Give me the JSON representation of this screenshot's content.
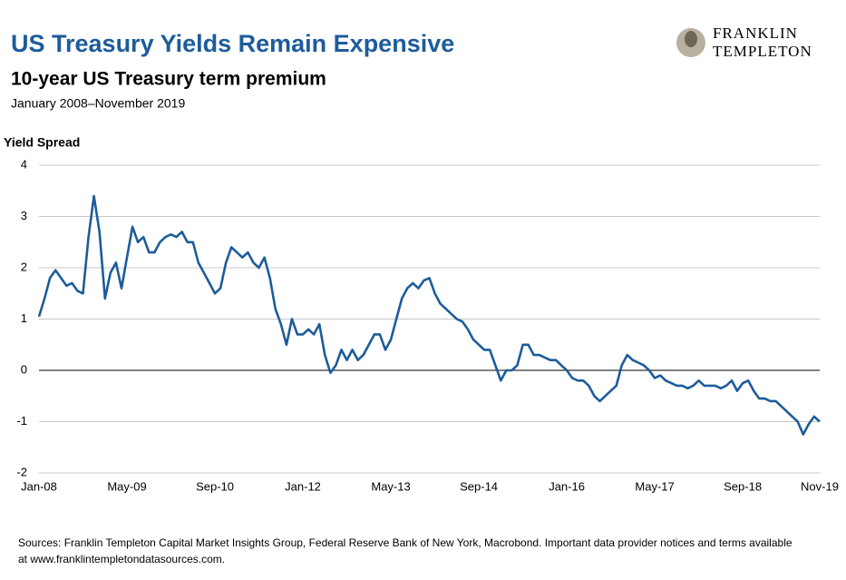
{
  "header": {
    "title": "US Treasury Yields Remain Expensive",
    "brand": [
      "FRANKLIN",
      "TEMPLETON"
    ]
  },
  "chart_data": {
    "type": "line",
    "title": "10-year US Treasury term premium",
    "subtitle": "January 2008–November 2019",
    "y_label": "Yield Spread",
    "categories": [
      "Jan-08",
      null,
      null,
      null,
      null,
      null,
      null,
      null,
      null,
      null,
      null,
      null,
      null,
      null,
      null,
      null,
      "May-09",
      null,
      null,
      null,
      null,
      null,
      null,
      null,
      null,
      null,
      null,
      null,
      null,
      null,
      null,
      null,
      "Sep-10",
      null,
      null,
      null,
      null,
      null,
      null,
      null,
      null,
      null,
      null,
      null,
      null,
      null,
      null,
      null,
      "Jan-12",
      null,
      null,
      null,
      null,
      null,
      null,
      null,
      null,
      null,
      null,
      null,
      null,
      null,
      null,
      null,
      "May-13",
      null,
      null,
      null,
      null,
      null,
      null,
      null,
      null,
      null,
      null,
      null,
      null,
      null,
      null,
      null,
      "Sep-14",
      null,
      null,
      null,
      null,
      null,
      null,
      null,
      null,
      null,
      null,
      null,
      null,
      null,
      null,
      null,
      "Jan-16",
      null,
      null,
      null,
      null,
      null,
      null,
      null,
      null,
      null,
      null,
      null,
      null,
      null,
      null,
      null,
      "May-17",
      null,
      null,
      null,
      null,
      null,
      null,
      null,
      null,
      null,
      null,
      null,
      null,
      null,
      null,
      null,
      "Sep-18",
      null,
      null,
      null,
      null,
      null,
      null,
      null,
      null,
      null,
      null,
      null,
      null,
      null,
      "Nov-19"
    ],
    "series": [
      {
        "name": "10-year US Treasury term premium",
        "color": "#1d5c9b",
        "values": [
          1.05,
          1.4,
          1.8,
          1.95,
          1.8,
          1.65,
          1.7,
          1.55,
          1.5,
          2.6,
          3.4,
          2.7,
          1.4,
          1.9,
          2.1,
          1.6,
          2.2,
          2.8,
          2.5,
          2.6,
          2.3,
          2.3,
          2.5,
          2.6,
          2.65,
          2.6,
          2.7,
          2.5,
          2.5,
          2.1,
          1.9,
          1.7,
          1.5,
          1.6,
          2.1,
          2.4,
          2.3,
          2.2,
          2.3,
          2.1,
          2.0,
          2.2,
          1.8,
          1.2,
          0.9,
          0.5,
          1.0,
          0.7,
          0.7,
          0.8,
          0.7,
          0.9,
          0.3,
          -0.05,
          0.1,
          0.4,
          0.2,
          0.4,
          0.2,
          0.3,
          0.5,
          0.7,
          0.7,
          0.4,
          0.6,
          1.0,
          1.4,
          1.6,
          1.7,
          1.6,
          1.75,
          1.8,
          1.5,
          1.3,
          1.2,
          1.1,
          1.0,
          0.95,
          0.8,
          0.6,
          0.5,
          0.4,
          0.4,
          0.1,
          -0.2,
          0.0,
          0.0,
          0.1,
          0.5,
          0.5,
          0.3,
          0.3,
          0.25,
          0.2,
          0.2,
          0.1,
          0.0,
          -0.15,
          -0.2,
          -0.2,
          -0.3,
          -0.5,
          -0.6,
          -0.5,
          -0.4,
          -0.3,
          0.1,
          0.3,
          0.2,
          0.15,
          0.1,
          0.0,
          -0.15,
          -0.1,
          -0.2,
          -0.25,
          -0.3,
          -0.3,
          -0.35,
          -0.3,
          -0.2,
          -0.3,
          -0.3,
          -0.3,
          -0.35,
          -0.3,
          -0.2,
          -0.4,
          -0.25,
          -0.2,
          -0.4,
          -0.55,
          -0.55,
          -0.6,
          -0.6,
          -0.7,
          -0.8,
          -0.9,
          -1.0,
          -1.25,
          -1.05,
          -0.9,
          -1.0
        ]
      }
    ],
    "ylim": [
      -2,
      4
    ],
    "yticks": [
      -2,
      -1,
      0,
      1,
      2,
      3,
      4
    ],
    "grid": true,
    "zero_line": true
  },
  "footer": {
    "sources": [
      "Sources: Franklin Templeton Capital Market Insights Group, Federal Reserve Bank of New York, Macrobond. Important data provider notices and terms available",
      "at www.franklintempletondatasources.com."
    ]
  }
}
